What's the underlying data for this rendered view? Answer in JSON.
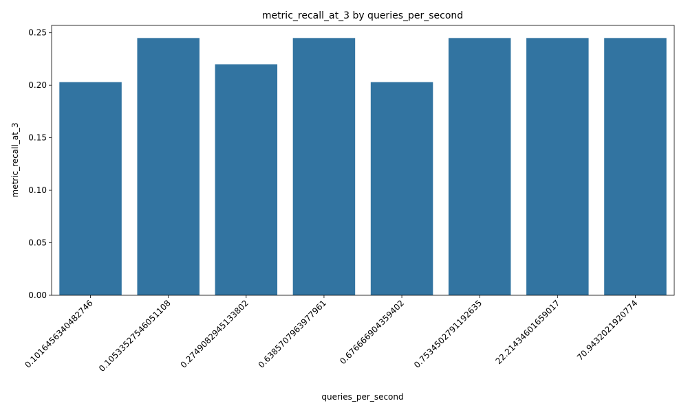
{
  "chart_data": {
    "type": "bar",
    "title": "metric_recall_at_3 by queries_per_second",
    "xlabel": "queries_per_second",
    "ylabel": "metric_recall_at_3",
    "categories": [
      "0.101645634048274​6",
      "0.10533527546051108",
      "0.2749082945133802",
      "0.6385707963977961",
      "0.6766669043594​02",
      "0.7534502791192635",
      "22.21434601659017",
      "70.943202192077​4"
    ],
    "values": [
      0.203,
      0.245,
      0.22,
      0.245,
      0.203,
      0.245,
      0.245,
      0.245
    ],
    "ylim": [
      0,
      0.257
    ],
    "yticks": [
      0.0,
      0.05,
      0.1,
      0.15,
      0.2,
      0.25
    ],
    "ytick_labels": [
      "0.00",
      "0.05",
      "0.10",
      "0.15",
      "0.20",
      "0.25"
    ],
    "bar_color": "#3274a1",
    "grid": false
  }
}
